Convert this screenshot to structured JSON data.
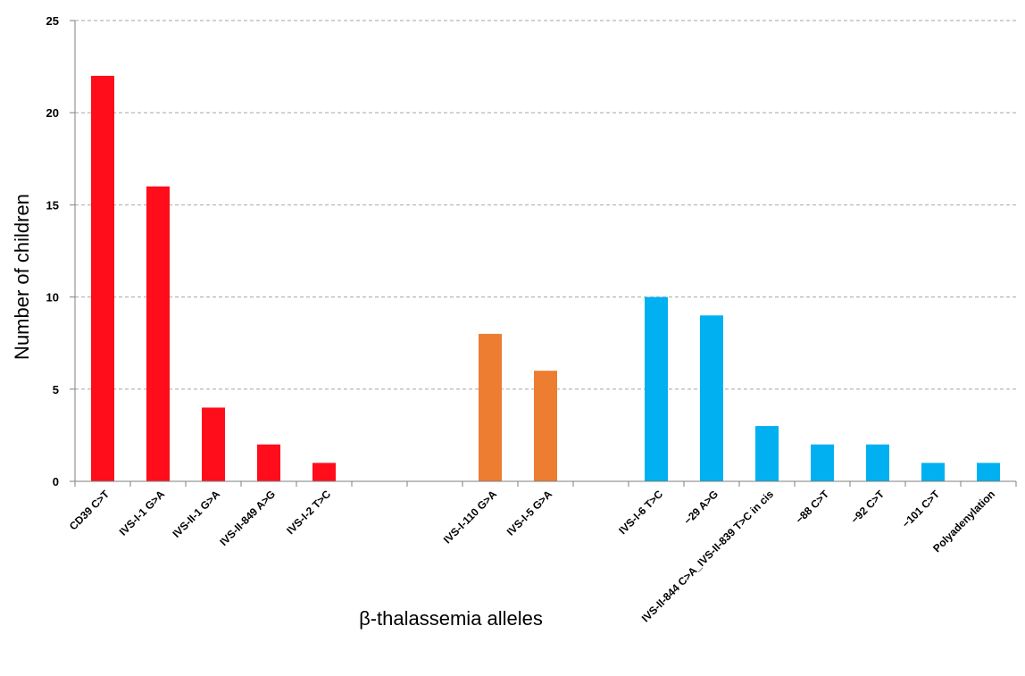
{
  "chart_data": {
    "type": "bar",
    "title": "",
    "xlabel": "β-thalassemia alleles",
    "ylabel": "Number of children",
    "ylim": [
      0,
      25
    ],
    "yticks": [
      0,
      5,
      10,
      15,
      20,
      25
    ],
    "grid": true,
    "legend": "none",
    "categories": [
      "CD39 C>T",
      "IVS-I-1 G>A",
      "IVS-II-1 G>A",
      "IVS-II-849 A>G",
      "IVS-I-2 T>C",
      "",
      "",
      "IVS-I-110 G>A",
      "IVS-I-5 G>A",
      "",
      "IVS-I-6 T>C",
      "−29 A>G",
      "IVS-II-844 C>A_IVS-II-839 T>C in cis",
      "−88 C>T",
      "−92 C>T",
      "−101 C>T",
      "Polyadenylation"
    ],
    "values": [
      22,
      16,
      4,
      2,
      1,
      null,
      null,
      8,
      6,
      null,
      10,
      9,
      3,
      2,
      2,
      1,
      1
    ],
    "bar_colors": [
      "#ff0d1a",
      "#ff0d1a",
      "#ff0d1a",
      "#ff0d1a",
      "#ff0d1a",
      "",
      "",
      "#ed7d31",
      "#ed7d31",
      "",
      "#00b0f0",
      "#00b0f0",
      "#00b0f0",
      "#00b0f0",
      "#00b0f0",
      "#00b0f0",
      "#00b0f0"
    ]
  }
}
